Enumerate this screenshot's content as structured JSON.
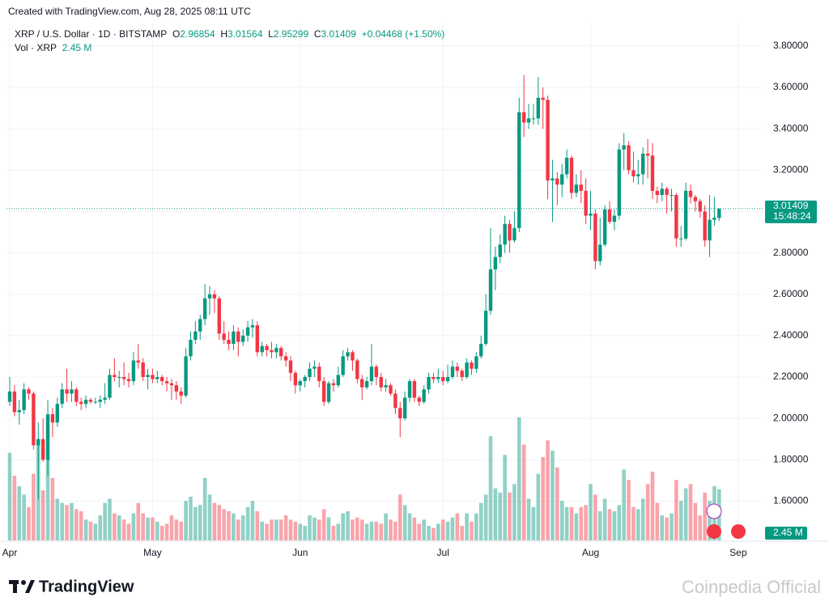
{
  "header": {
    "created": "Created with TradingView.com, Aug 28, 2025 08:11 UTC"
  },
  "chart_data": {
    "type": "candlestick",
    "symbol": "XRP / U.S. Dollar · 1D · BITSTAMP",
    "o_label": "O",
    "h_label": "H",
    "l_label": "L",
    "c_label": "C",
    "change": "+0.04468 (+1.50%)",
    "volume_title": "Vol · XRP",
    "last_volume_label": "2.45 M",
    "countdown": "15:48:24",
    "up_color": "#089981",
    "down_color": "#f23645",
    "grid": true,
    "xlim": [
      -0.34,
      158.3
    ],
    "ylim": [
      1.41,
      3.913
    ],
    "xticks": [
      {
        "value": 0,
        "label": "Apr"
      },
      {
        "value": 30,
        "label": "May"
      },
      {
        "value": 61,
        "label": "Jun"
      },
      {
        "value": 91,
        "label": "Jul"
      },
      {
        "value": 122,
        "label": "Aug"
      },
      {
        "value": 153,
        "label": "Sep"
      }
    ],
    "yticks": [
      {
        "value": 1.6,
        "label": "1.60000"
      },
      {
        "value": 1.8,
        "label": "1.80000"
      },
      {
        "value": 2.0,
        "label": "2.00000"
      },
      {
        "value": 2.2,
        "label": "2.20000"
      },
      {
        "value": 2.4,
        "label": "2.40000"
      },
      {
        "value": 2.6,
        "label": "2.60000"
      },
      {
        "value": 2.8,
        "label": "2.80000"
      },
      {
        "value": 3.0,
        "label": "3.00000"
      },
      {
        "value": 3.2,
        "label": "3.20000"
      },
      {
        "value": 3.4,
        "label": "3.40000"
      },
      {
        "value": 3.6,
        "label": "3.60000"
      },
      {
        "value": 3.8,
        "label": "3.80000"
      }
    ],
    "open": [
      2.08,
      2.13,
      2.03,
      2.04,
      2.14,
      2.12,
      1.87,
      1.9,
      1.8,
      2.02,
      1.98,
      2.07,
      2.14,
      2.12,
      2.14,
      2.08,
      2.07,
      2.09,
      2.08,
      2.08,
      2.09,
      2.1,
      2.21,
      2.2,
      2.2,
      2.19,
      2.18,
      2.28,
      2.27,
      2.2,
      2.21,
      2.19,
      2.2,
      2.18,
      2.17,
      2.16,
      2.13,
      2.11,
      2.3,
      2.38,
      2.42,
      2.48,
      2.58,
      2.6,
      2.58,
      2.41,
      2.38,
      2.36,
      2.42,
      2.37,
      2.4,
      2.44,
      2.45,
      2.32,
      2.35,
      2.33,
      2.32,
      2.34,
      2.3,
      2.28,
      2.22,
      2.16,
      2.18,
      2.2,
      2.24,
      2.25,
      2.18,
      2.08,
      2.17,
      2.16,
      2.21,
      2.3,
      2.32,
      2.28,
      2.19,
      2.15,
      2.18,
      2.25,
      2.2,
      2.15,
      2.16,
      2.12,
      2.05,
      2.0,
      2.1,
      2.18,
      2.1,
      2.08,
      2.14,
      2.2,
      2.19,
      2.2,
      2.18,
      2.2,
      2.25,
      2.23,
      2.2,
      2.27,
      2.24,
      2.3,
      2.36,
      2.52,
      2.72,
      2.78,
      2.84,
      2.94,
      2.86,
      2.92,
      3.48,
      3.43,
      3.45,
      3.45,
      3.55,
      3.54,
      3.15,
      3.16,
      3.13,
      3.18,
      3.26,
      3.09,
      3.13,
      3.1,
      2.98,
      2.99,
      2.76,
      2.84,
      3.01,
      2.95,
      2.98,
      3.3,
      3.32,
      3.2,
      3.17,
      3.18,
      3.28,
      3.27,
      3.1,
      3.08,
      3.11,
      3.08,
      3.08,
      2.87,
      2.87,
      3.1,
      3.07,
      3.05,
      3.0,
      2.86,
      2.96,
      2.96854
    ],
    "high": [
      2.2,
      2.16,
      2.09,
      2.17,
      2.15,
      2.13,
      1.98,
      2.0,
      2.09,
      2.05,
      2.1,
      2.17,
      2.24,
      2.18,
      2.15,
      2.1,
      2.11,
      2.1,
      2.1,
      2.11,
      2.17,
      2.24,
      2.29,
      2.23,
      2.27,
      2.22,
      2.32,
      2.36,
      2.29,
      2.24,
      2.24,
      2.23,
      2.21,
      2.2,
      2.19,
      2.18,
      2.15,
      2.34,
      2.42,
      2.47,
      2.5,
      2.65,
      2.64,
      2.62,
      2.59,
      2.47,
      2.42,
      2.45,
      2.44,
      2.43,
      2.47,
      2.48,
      2.47,
      2.37,
      2.36,
      2.37,
      2.36,
      2.35,
      2.32,
      2.3,
      2.23,
      2.19,
      2.21,
      2.27,
      2.28,
      2.27,
      2.2,
      2.18,
      2.19,
      2.25,
      2.33,
      2.34,
      2.33,
      2.29,
      2.21,
      2.2,
      2.36,
      2.26,
      2.22,
      2.19,
      2.17,
      2.14,
      2.08,
      2.13,
      2.19,
      2.19,
      2.11,
      2.16,
      2.22,
      2.22,
      2.24,
      2.23,
      2.26,
      2.28,
      2.27,
      2.24,
      2.29,
      2.28,
      2.32,
      2.4,
      2.6,
      2.92,
      2.83,
      2.89,
      2.98,
      2.96,
      3.0,
      3.55,
      3.66,
      3.52,
      3.52,
      3.65,
      3.6,
      3.56,
      3.25,
      3.19,
      3.23,
      3.3,
      3.27,
      3.18,
      3.2,
      3.16,
      3.1,
      3.01,
      2.97,
      3.03,
      3.05,
      3.01,
      3.33,
      3.38,
      3.34,
      3.29,
      3.25,
      3.31,
      3.35,
      3.33,
      3.12,
      3.14,
      3.12,
      3.11,
      3.09,
      2.93,
      3.14,
      3.13,
      3.08,
      3.06,
      3.03,
      3.08,
      3.07,
      3.01564
    ],
    "low": [
      2.06,
      2.01,
      1.97,
      2.02,
      2.09,
      1.85,
      1.61,
      1.79,
      1.72,
      1.91,
      1.96,
      2.05,
      2.08,
      2.08,
      2.06,
      2.04,
      2.05,
      2.07,
      2.07,
      2.05,
      2.07,
      2.09,
      2.18,
      2.15,
      2.16,
      2.15,
      2.16,
      2.24,
      2.18,
      2.14,
      2.17,
      2.17,
      2.16,
      2.13,
      2.09,
      2.09,
      2.07,
      2.1,
      2.28,
      2.36,
      2.38,
      2.45,
      2.5,
      2.51,
      2.38,
      2.36,
      2.33,
      2.33,
      2.3,
      2.35,
      2.37,
      2.39,
      2.3,
      2.3,
      2.3,
      2.29,
      2.29,
      2.28,
      2.25,
      2.18,
      2.12,
      2.13,
      2.15,
      2.18,
      2.2,
      2.15,
      2.06,
      2.07,
      2.13,
      2.15,
      2.2,
      2.28,
      2.23,
      2.17,
      2.09,
      2.14,
      2.16,
      2.16,
      2.13,
      2.13,
      2.11,
      2.02,
      1.91,
      1.99,
      2.08,
      2.08,
      2.06,
      2.07,
      2.12,
      2.17,
      2.17,
      2.16,
      2.17,
      2.19,
      2.2,
      2.18,
      2.19,
      2.21,
      2.22,
      2.29,
      2.35,
      2.5,
      2.62,
      2.75,
      2.8,
      2.8,
      2.85,
      2.9,
      3.36,
      3.4,
      3.42,
      3.42,
      3.4,
      3.06,
      2.95,
      3.03,
      3.07,
      3.16,
      3.06,
      3.07,
      3.04,
      2.94,
      2.91,
      2.72,
      2.74,
      2.83,
      2.94,
      2.91,
      2.96,
      3.2,
      3.18,
      3.14,
      3.13,
      3.13,
      3.16,
      3.06,
      3.04,
      3.05,
      2.99,
      3.0,
      2.83,
      2.83,
      2.86,
      3.04,
      3.0,
      2.97,
      2.83,
      2.78,
      2.93,
      2.95299
    ],
    "close": [
      2.13,
      2.03,
      2.04,
      2.14,
      2.12,
      1.87,
      1.9,
      1.8,
      2.02,
      1.98,
      2.07,
      2.14,
      2.12,
      2.14,
      2.08,
      2.07,
      2.09,
      2.08,
      2.08,
      2.09,
      2.1,
      2.21,
      2.2,
      2.2,
      2.19,
      2.18,
      2.28,
      2.27,
      2.2,
      2.21,
      2.19,
      2.2,
      2.18,
      2.17,
      2.16,
      2.13,
      2.11,
      2.3,
      2.38,
      2.42,
      2.48,
      2.58,
      2.6,
      2.58,
      2.41,
      2.38,
      2.36,
      2.42,
      2.37,
      2.4,
      2.44,
      2.45,
      2.32,
      2.35,
      2.33,
      2.32,
      2.34,
      2.3,
      2.28,
      2.22,
      2.16,
      2.18,
      2.2,
      2.24,
      2.25,
      2.18,
      2.08,
      2.17,
      2.16,
      2.21,
      2.3,
      2.32,
      2.28,
      2.19,
      2.15,
      2.18,
      2.25,
      2.2,
      2.15,
      2.16,
      2.12,
      2.05,
      2.0,
      2.1,
      2.18,
      2.1,
      2.08,
      2.14,
      2.2,
      2.19,
      2.2,
      2.18,
      2.2,
      2.25,
      2.23,
      2.2,
      2.27,
      2.24,
      2.3,
      2.36,
      2.52,
      2.72,
      2.78,
      2.84,
      2.94,
      2.86,
      2.92,
      3.48,
      3.43,
      3.45,
      3.45,
      3.55,
      3.54,
      3.15,
      3.16,
      3.13,
      3.18,
      3.26,
      3.09,
      3.13,
      3.1,
      2.98,
      2.99,
      2.76,
      2.84,
      3.01,
      2.95,
      2.98,
      3.3,
      3.32,
      3.2,
      3.17,
      3.18,
      3.28,
      3.27,
      3.1,
      3.08,
      3.11,
      3.08,
      3.08,
      2.87,
      2.87,
      3.1,
      3.07,
      3.05,
      3.0,
      2.86,
      2.96,
      2.97,
      3.01409
    ],
    "volume": [
      4.2,
      3.1,
      2.6,
      2.2,
      1.6,
      3.2,
      4.8,
      2.4,
      3.9,
      3.0,
      2.0,
      1.8,
      1.7,
      1.8,
      1.5,
      1.4,
      1.0,
      0.9,
      0.8,
      1.2,
      1.8,
      2.0,
      1.3,
      1.2,
      1.0,
      0.8,
      1.3,
      1.8,
      1.3,
      1.1,
      1.1,
      0.9,
      0.7,
      0.8,
      1.2,
      1.0,
      0.9,
      1.9,
      2.1,
      1.6,
      1.7,
      3.0,
      2.2,
      1.8,
      1.7,
      1.5,
      1.4,
      1.3,
      1.0,
      1.2,
      1.6,
      1.9,
      1.4,
      0.9,
      0.8,
      1.0,
      1.0,
      1.0,
      1.2,
      1.0,
      0.9,
      0.8,
      0.7,
      1.2,
      1.1,
      1.0,
      1.5,
      1.1,
      0.7,
      0.8,
      1.3,
      1.4,
      1.0,
      1.1,
      1.0,
      0.8,
      0.9,
      0.9,
      0.8,
      1.3,
      1.0,
      0.9,
      2.2,
      1.7,
      1.3,
      1.1,
      0.8,
      1.0,
      0.7,
      0.6,
      0.8,
      1.0,
      0.9,
      1.1,
      1.3,
      0.7,
      1.3,
      0.9,
      1.3,
      1.8,
      2.2,
      5.0,
      2.5,
      2.3,
      4.1,
      2.3,
      2.7,
      5.9,
      4.6,
      2.0,
      1.6,
      3.2,
      4.0,
      4.8,
      4.3,
      3.5,
      1.9,
      1.6,
      1.6,
      1.3,
      1.6,
      1.7,
      2.7,
      2.2,
      1.4,
      2.0,
      1.5,
      1.4,
      1.7,
      3.4,
      2.9,
      1.6,
      1.5,
      2.0,
      2.7,
      3.3,
      1.8,
      1.2,
      1.1,
      1.3,
      2.9,
      1.9,
      2.5,
      2.7,
      1.8,
      1.2,
      2.3,
      1.9,
      2.6,
      2.45
    ]
  },
  "footer": {
    "logo": "TradingView",
    "watermark": "Coinpedia Official"
  }
}
